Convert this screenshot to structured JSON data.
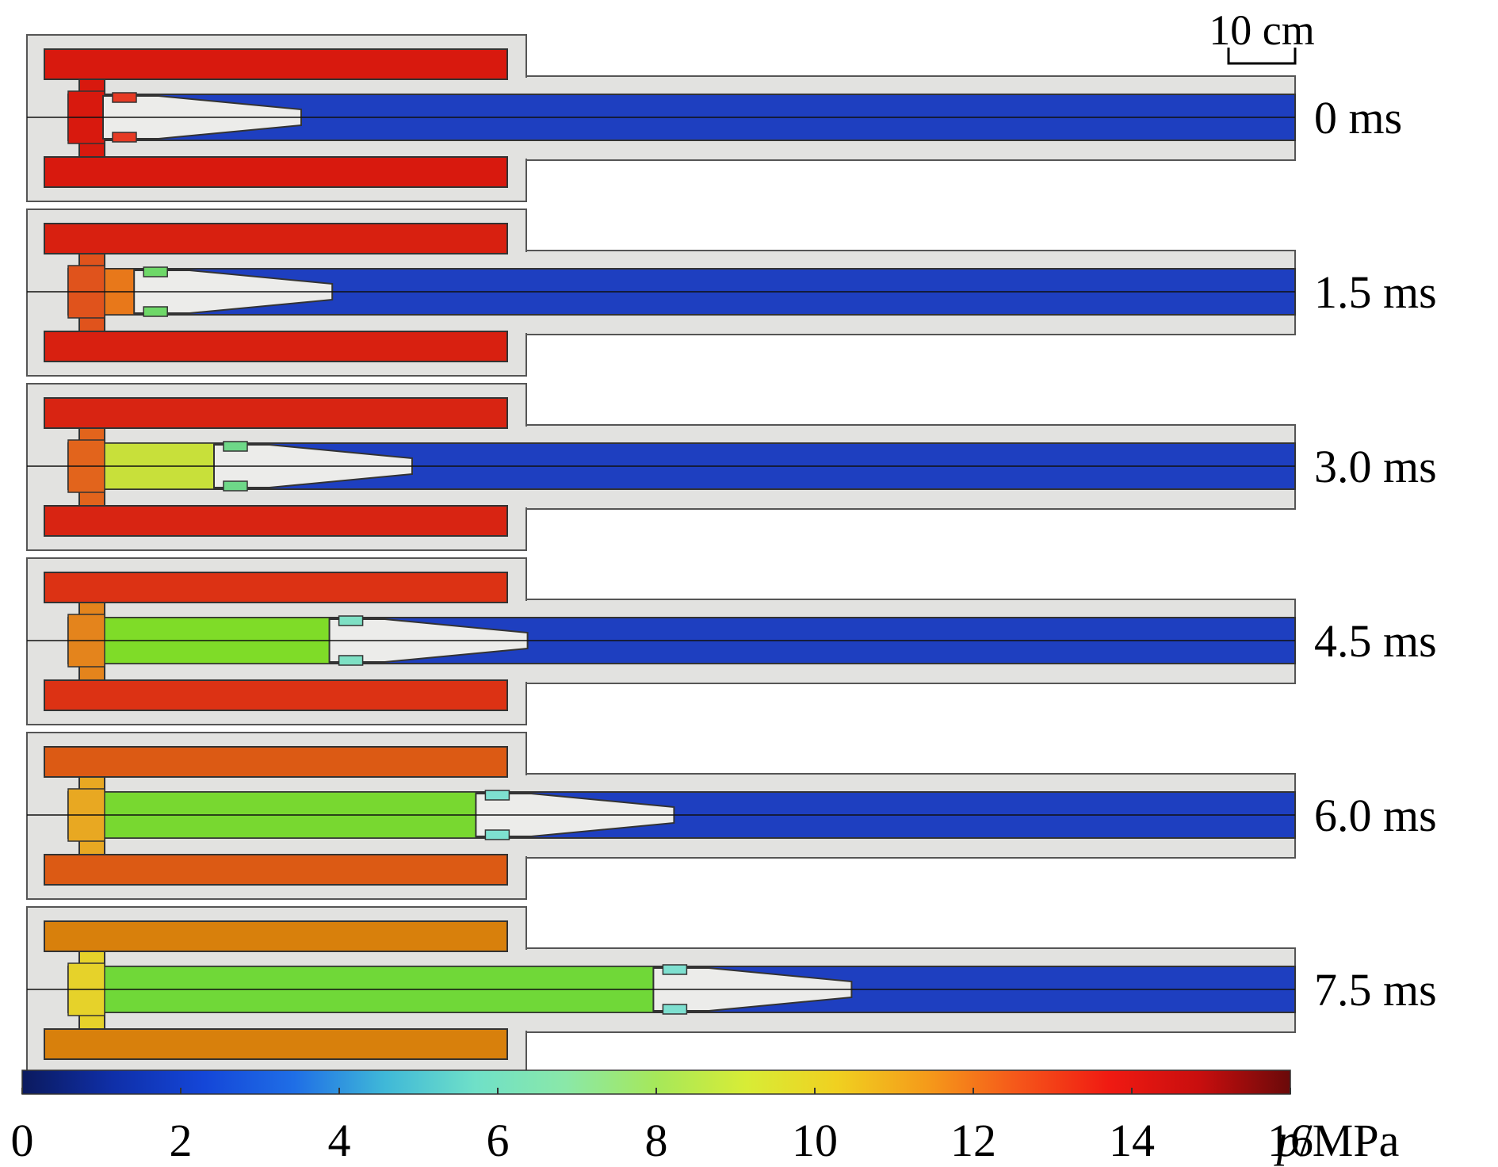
{
  "scale_bar": {
    "label": "10 cm"
  },
  "colorbar": {
    "min": 0,
    "max": 16,
    "ticks": [
      "0",
      "2",
      "4",
      "6",
      "8",
      "10",
      "12",
      "14",
      "16"
    ],
    "unit_symbol": "p",
    "unit_rest": "/MPa",
    "stops": [
      "#0b1a5e",
      "#0f2fa8",
      "#1446d8",
      "#1f6ee6",
      "#3fb8d8",
      "#6fe0c8",
      "#8ae8a8",
      "#a6e85a",
      "#d8ec36",
      "#f0d020",
      "#f59a1a",
      "#f5561a",
      "#f01a12",
      "#c80e0e",
      "#6a0a0a"
    ]
  },
  "frames": [
    {
      "time": "0 ms",
      "projectile_pos": 0.0,
      "chamber_color": "#d8190e",
      "gas_color": "#d8190e",
      "header_color": "#d8190e",
      "band_color": "#e63a24"
    },
    {
      "time": "1.5 ms",
      "projectile_pos": 0.07,
      "chamber_color": "#d82010",
      "gas_color": "#e8781a",
      "header_color": "#e0531c",
      "band_color": "#6ed868"
    },
    {
      "time": "3.0 ms",
      "projectile_pos": 0.25,
      "chamber_color": "#d82412",
      "gas_color": "#c8e03a",
      "header_color": "#e2641c",
      "band_color": "#6ed888"
    },
    {
      "time": "4.5 ms",
      "projectile_pos": 0.51,
      "chamber_color": "#dc3214",
      "gas_color": "#7fdc28",
      "header_color": "#e4841c",
      "band_color": "#7ee0c4"
    },
    {
      "time": "6.0 ms",
      "projectile_pos": 0.84,
      "chamber_color": "#dc5a14",
      "gas_color": "#78d830",
      "header_color": "#e8a822",
      "band_color": "#7ee0d0"
    },
    {
      "time": "7.5 ms",
      "projectile_pos": 1.24,
      "chamber_color": "#d8800c",
      "gas_color": "#70d838",
      "header_color": "#e6d22a",
      "band_color": "#7ee0d0"
    }
  ]
}
